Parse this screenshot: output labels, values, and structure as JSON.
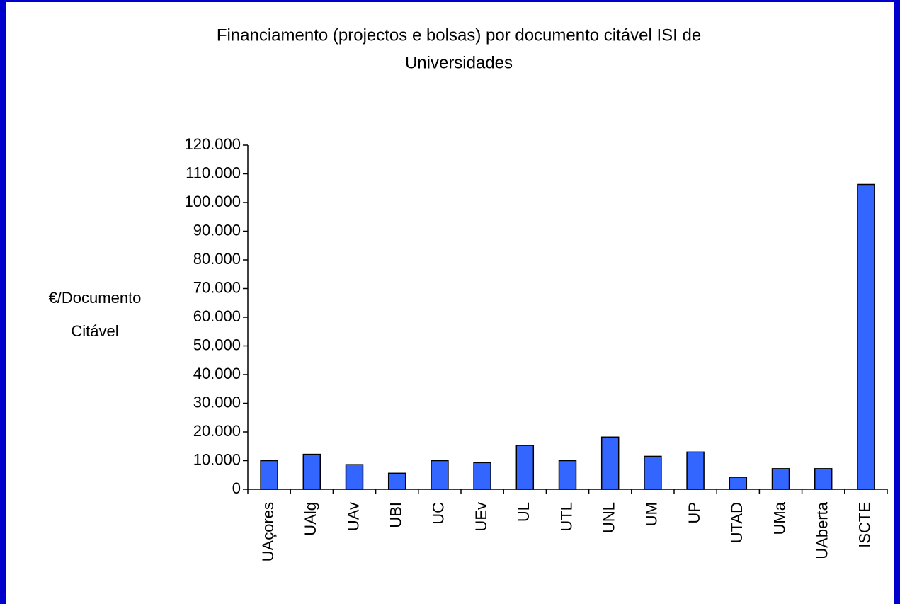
{
  "chart_data": {
    "type": "bar",
    "title": [
      "Financiamento (projectos e bolsas) por documento citável ISI de",
      "Universidades"
    ],
    "y_label": [
      "€/Documento",
      "Citável"
    ],
    "categories": [
      "UAçores",
      "UAlg",
      "UAv",
      "UBI",
      "UC",
      "UEv",
      "UL",
      "UTL",
      "UNL",
      "UM",
      "UP",
      "UTAD",
      "UMa",
      "UAberta",
      "ISCTE"
    ],
    "values": [
      10000,
      12200,
      8600,
      5600,
      10000,
      9300,
      15300,
      10000,
      18200,
      11500,
      13000,
      4200,
      7200,
      7200,
      106300
    ],
    "color": "#3366ff",
    "ylim": [
      0,
      120000
    ],
    "yticks": [
      0,
      {
        "value": 10000,
        "label": "10.000"
      },
      {
        "value": 20000,
        "label": "20.000"
      },
      {
        "value": 30000,
        "label": "30.000"
      },
      {
        "value": 40000,
        "label": "40.000"
      },
      {
        "value": 50000,
        "label": "50.000"
      },
      {
        "value": 60000,
        "label": "60.000"
      },
      {
        "value": 70000,
        "label": "70.000"
      },
      {
        "value": 80000,
        "label": "80.000"
      },
      {
        "value": 90000,
        "label": "90.000"
      },
      {
        "value": 100000,
        "label": "100.000"
      },
      {
        "value": 110000,
        "label": "110.000"
      },
      {
        "value": 120000,
        "label": "120.000"
      }
    ],
    "grid": false
  }
}
